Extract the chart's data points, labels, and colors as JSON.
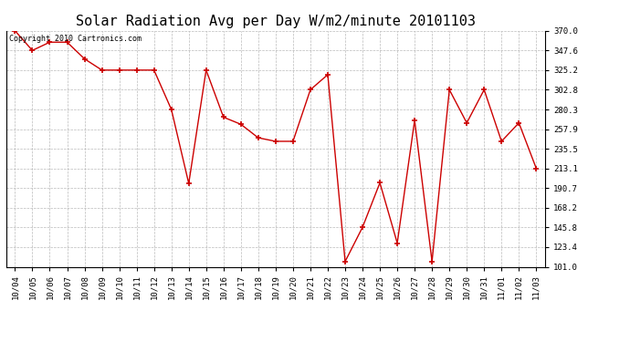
{
  "title": "Solar Radiation Avg per Day W/m2/minute 20101103",
  "copyright": "Copyright 2010 Cartronics.com",
  "dates": [
    "10/04",
    "10/05",
    "10/06",
    "10/07",
    "10/08",
    "10/09",
    "10/10",
    "10/11",
    "10/12",
    "10/13",
    "10/14",
    "10/15",
    "10/16",
    "10/17",
    "10/18",
    "10/19",
    "10/20",
    "10/21",
    "10/22",
    "10/23",
    "10/24",
    "10/25",
    "10/26",
    "10/27",
    "10/28",
    "10/29",
    "10/30",
    "10/31",
    "11/01",
    "11/02",
    "11/03"
  ],
  "values": [
    370.0,
    347.6,
    357.0,
    357.0,
    338.0,
    325.2,
    325.2,
    325.2,
    325.2,
    280.3,
    196.0,
    325.2,
    271.5,
    263.4,
    248.0,
    244.0,
    244.0,
    302.8,
    320.0,
    107.0,
    146.0,
    196.7,
    128.0,
    268.0,
    107.0,
    302.8,
    265.0,
    302.8,
    244.0,
    265.0,
    213.1
  ],
  "line_color": "#cc0000",
  "marker": "+",
  "marker_color": "#cc0000",
  "background_color": "#ffffff",
  "grid_color": "#aaaaaa",
  "ylim": [
    101.0,
    370.0
  ],
  "yticks": [
    101.0,
    123.4,
    145.8,
    168.2,
    190.7,
    213.1,
    235.5,
    257.9,
    280.3,
    302.8,
    325.2,
    347.6,
    370.0
  ],
  "title_fontsize": 11,
  "tick_fontsize": 6.5,
  "copyright_fontsize": 6
}
